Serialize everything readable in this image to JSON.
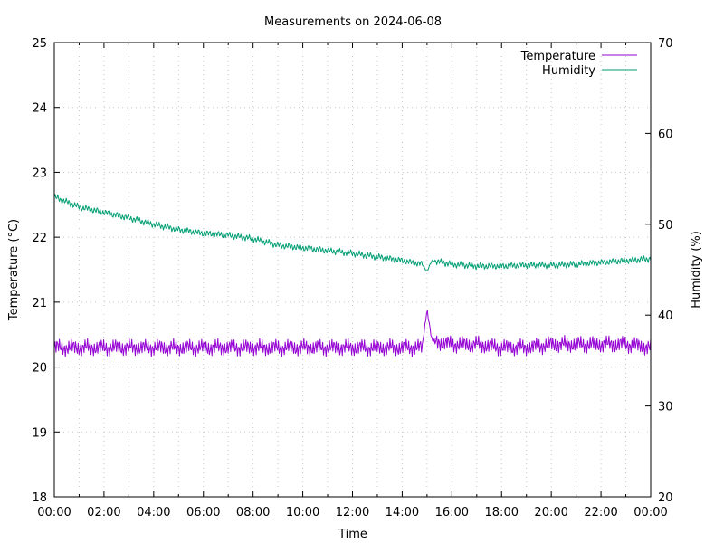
{
  "chart_data": {
    "type": "line",
    "title": "Measurements on 2024-06-08",
    "xlabel": "Time",
    "ylabel": "Temperature (°C)",
    "y2label": "Humidity (%)",
    "grid": true,
    "legend_position": "top-right",
    "xlim": [
      0,
      24
    ],
    "ylim": [
      18,
      25
    ],
    "y2lim": [
      20,
      70
    ],
    "x_ticks": [
      "00:00",
      "02:00",
      "04:00",
      "06:00",
      "08:00",
      "10:00",
      "12:00",
      "14:00",
      "16:00",
      "18:00",
      "20:00",
      "22:00",
      "00:00"
    ],
    "y_ticks": [
      18,
      19,
      20,
      21,
      22,
      23,
      24,
      25
    ],
    "y2_ticks": [
      20,
      30,
      40,
      50,
      60,
      70
    ],
    "series": [
      {
        "name": "Temperature",
        "axis": "y",
        "color": "#9400d3",
        "x_hours": [
          0,
          1,
          2,
          3,
          4,
          5,
          6,
          7,
          8,
          9,
          10,
          11,
          12,
          13,
          14,
          14.8,
          15.0,
          15.2,
          16,
          17,
          18,
          19,
          20,
          21,
          22,
          23,
          24
        ],
        "values": [
          20.3,
          20.3,
          20.3,
          20.3,
          20.3,
          20.3,
          20.3,
          20.3,
          20.3,
          20.3,
          20.3,
          20.3,
          20.3,
          20.3,
          20.3,
          20.3,
          20.9,
          20.4,
          20.35,
          20.35,
          20.3,
          20.3,
          20.35,
          20.35,
          20.35,
          20.35,
          20.3
        ],
        "noise_amplitude": 0.1
      },
      {
        "name": "Humidity",
        "axis": "y2",
        "color": "#009e73",
        "x_hours": [
          0,
          1,
          2,
          3,
          4,
          5,
          6,
          7,
          8,
          9,
          10,
          11,
          12,
          13,
          14,
          14.8,
          15.0,
          15.2,
          16,
          17,
          18,
          19,
          20,
          21,
          22,
          23,
          24
        ],
        "values": [
          53.0,
          51.9,
          51.3,
          50.7,
          50.0,
          49.4,
          49.0,
          48.8,
          48.4,
          47.7,
          47.4,
          47.1,
          46.8,
          46.4,
          46.0,
          45.6,
          44.8,
          46.0,
          45.6,
          45.4,
          45.4,
          45.5,
          45.5,
          45.6,
          45.8,
          46.0,
          46.2
        ],
        "noise_amplitude": 0.4
      }
    ]
  }
}
